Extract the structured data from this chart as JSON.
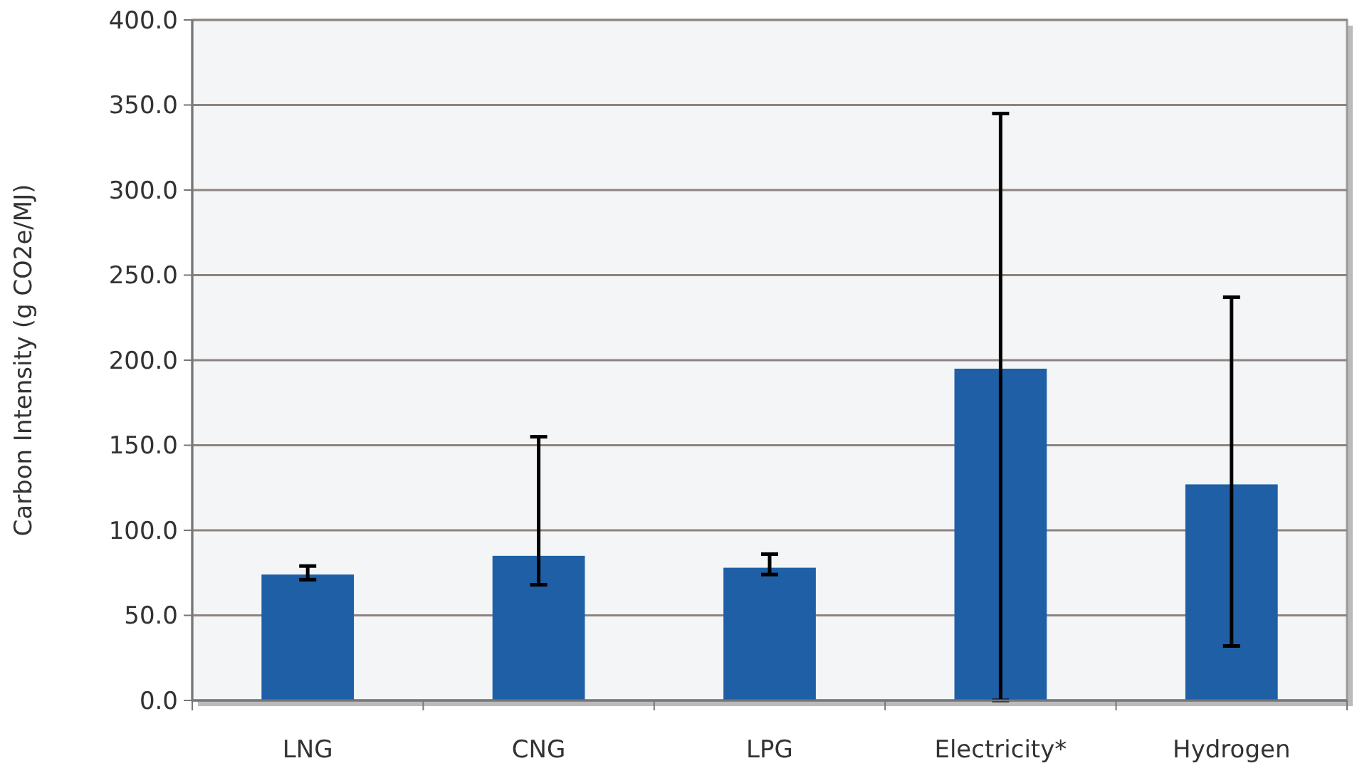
{
  "chart_data": {
    "type": "bar",
    "ylabel": "Carbon Intensity (g CO2e/MJ)",
    "categories": [
      "LNG",
      "CNG",
      "LPG",
      "Electricity*",
      "Hydrogen"
    ],
    "values": [
      74,
      85,
      78,
      195,
      127
    ],
    "errors": [
      [
        71,
        79
      ],
      [
        68,
        155
      ],
      [
        74,
        86
      ],
      [
        0,
        345
      ],
      [
        32,
        237
      ]
    ],
    "color": "#1f5fa6",
    "ylim": [
      0,
      400
    ],
    "yticks": [
      {
        "value": 0,
        "label": "0.0"
      },
      {
        "value": 50,
        "label": "50.0"
      },
      {
        "value": 100,
        "label": "100.0"
      },
      {
        "value": 150,
        "label": "150.0"
      },
      {
        "value": 200,
        "label": "200.0"
      },
      {
        "value": 250,
        "label": "250.0"
      },
      {
        "value": 300,
        "label": "300.0"
      },
      {
        "value": 350,
        "label": "350.0"
      },
      {
        "value": 400,
        "label": "400.0"
      }
    ],
    "grid": "y"
  }
}
